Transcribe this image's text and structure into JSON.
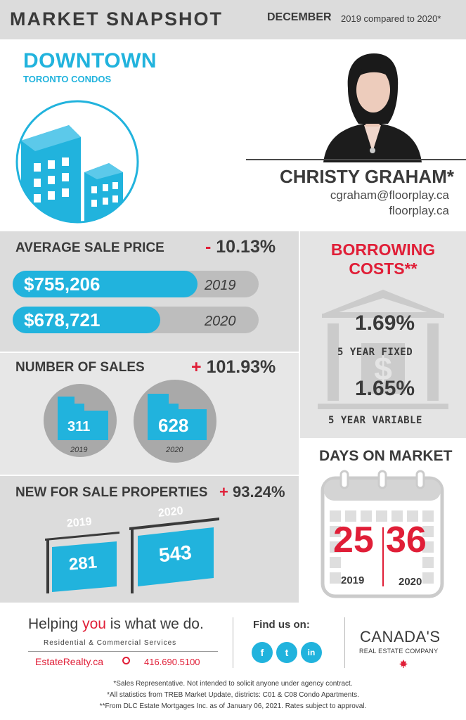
{
  "header": {
    "title": "MARKET SNAPSHOT",
    "month": "DECEMBER",
    "comparison": "2019 compared to 2020*"
  },
  "location": {
    "title": "DOWNTOWN",
    "subtitle": "TORONTO CONDOS"
  },
  "agent": {
    "name": "CHRISTY GRAHAM*",
    "email": "cgraham@floorplay.ca",
    "website": "floorplay.ca"
  },
  "average_sale_price": {
    "title": "AVERAGE SALE PRICE",
    "sign": "-",
    "change": "10.13%",
    "rows": [
      {
        "value": "$755,206",
        "year": "2019",
        "fill": 0.75
      },
      {
        "value": "$678,721",
        "year": "2020",
        "fill": 0.6
      }
    ]
  },
  "number_of_sales": {
    "title": "NUMBER OF SALES",
    "sign": "+",
    "change": "101.93%",
    "items": [
      {
        "value": "311",
        "year": "2019"
      },
      {
        "value": "628",
        "year": "2020"
      }
    ]
  },
  "new_for_sale": {
    "title": "NEW FOR SALE PROPERTIES",
    "sign": "+",
    "change": "93.24%",
    "items": [
      {
        "value": "281",
        "year": "2019"
      },
      {
        "value": "543",
        "year": "2020"
      }
    ]
  },
  "borrowing_costs": {
    "title_line1": "BORROWING",
    "title_line2": "COSTS**",
    "fixed_rate": "1.69%",
    "fixed_label": "5 YEAR FIXED",
    "variable_rate": "1.65%",
    "variable_label": "5 YEAR VARIABLE",
    "icon": "bank-icon"
  },
  "days_on_market": {
    "title": "DAYS ON MARKET",
    "items": [
      {
        "value": "25",
        "year": "2019"
      },
      {
        "value": "36",
        "year": "2020"
      }
    ],
    "icon": "calendar-icon"
  },
  "footer": {
    "tagline_pre": "Helping ",
    "tagline_em": "you",
    "tagline_post": " is what we do.",
    "tag_sub": "Residential & Commercial Services",
    "site": "EstateRealty.ca",
    "phone": "416.690.5100",
    "find_us": "Find us on:",
    "social": [
      "f",
      "t",
      "in"
    ],
    "brand_line1": "CANADA'S",
    "brand_line2": "REAL ESTATE COMPANY",
    "notes": [
      "*Sales Representative. Not intended to solicit anyone under agency contract.",
      "*All statistics from TREB Market Update, districts: C01 & C08 Condo Apartments.",
      "**From DLC Estate Mortgages Inc. as of January 06, 2021. Rates subject to approval."
    ]
  },
  "colors": {
    "accent_blue": "#21b3dd",
    "accent_red": "#e01e37",
    "panel_gray": "#dcdcdc",
    "text_dark": "#3a3a3a"
  }
}
